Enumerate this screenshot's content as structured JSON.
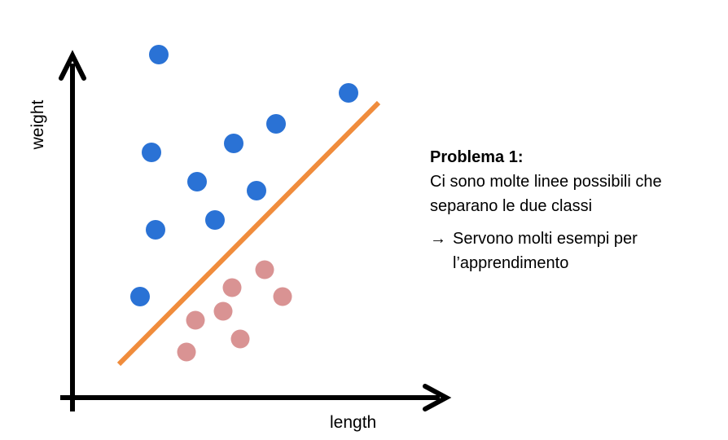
{
  "axes": {
    "ylabel": "weight",
    "xlabel": "length"
  },
  "colors": {
    "axis": "#000000",
    "class_a": "#2a72d5",
    "class_b": "#d99393",
    "separator": "#f08c3c"
  },
  "chart_data": {
    "type": "scatter",
    "xlabel": "length",
    "ylabel": "weight",
    "series": [
      {
        "points": [
          [
            195,
            67
          ],
          [
            428,
            114
          ],
          [
            339,
            152
          ],
          [
            186,
            187
          ],
          [
            287,
            176
          ],
          [
            242,
            223
          ],
          [
            315,
            234
          ],
          [
            191,
            282
          ],
          [
            264,
            270
          ],
          [
            172,
            364
          ]
        ]
      },
      {
        "points": [
          [
            325,
            331
          ],
          [
            285,
            353
          ],
          [
            347,
            364
          ],
          [
            274,
            382
          ],
          [
            240,
            393
          ],
          [
            295,
            416
          ],
          [
            229,
            432
          ]
        ]
      }
    ],
    "separator_line": [
      [
        146,
        447
      ],
      [
        465,
        126
      ]
    ]
  },
  "note": {
    "title": "Problema 1:",
    "line1": "Ci sono molte linee possibili che",
    "line2": "separano le due classi",
    "arrow": "→",
    "point1": "Servono molti esempi per",
    "point2": "l’apprendimento"
  }
}
